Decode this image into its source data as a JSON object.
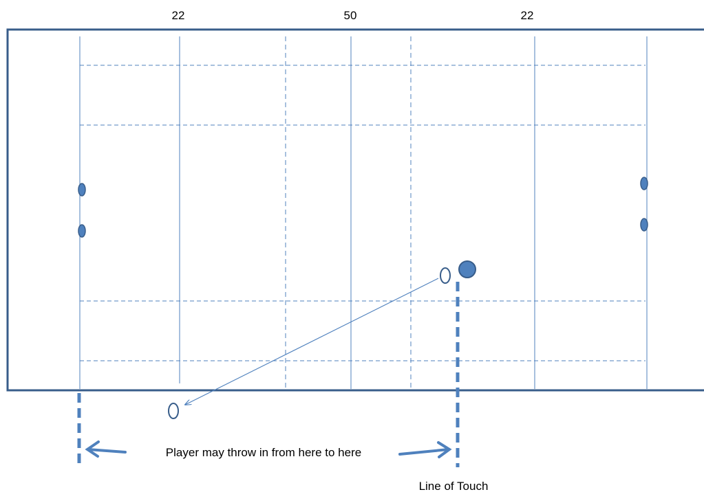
{
  "field_labels": {
    "left_22": "22",
    "halfway": "50",
    "right_22": "22"
  },
  "annotation": {
    "throw_range": "Player may throw in from here to here",
    "line_of_touch": "Line of Touch"
  },
  "colors": {
    "line": "#4f81bd",
    "player_fill": "#4f81bd",
    "player_stroke": "#385d8a",
    "pitch_border": "#385d8a",
    "text": "#000000"
  }
}
